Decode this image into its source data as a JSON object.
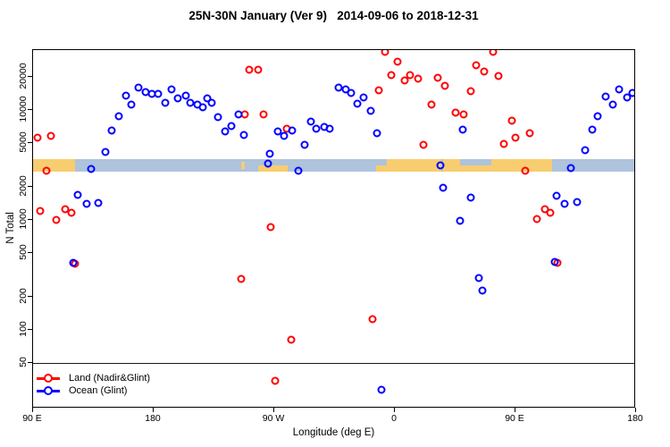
{
  "title": "25N-30N January (Ver 9)   2014-09-06 to 2018-12-31",
  "axes": {
    "x": {
      "label": "Longitude (deg E)",
      "ticks": [
        {
          "lon": 90,
          "label": "90 E"
        },
        {
          "lon": 180,
          "label": "180"
        },
        {
          "lon": 270,
          "label": "90 W"
        },
        {
          "lon": 360,
          "label": "0"
        },
        {
          "lon": 450,
          "label": "90 E"
        },
        {
          "lon": 540,
          "label": "180"
        }
      ]
    },
    "y": {
      "label": "N Total",
      "scale": "log",
      "ticks": [
        "20000",
        "10000",
        "5000",
        "2000",
        "1000",
        "500",
        "200",
        "100",
        "50"
      ]
    }
  },
  "legend": {
    "items": [
      {
        "label": "Land (Nadir&Glint)",
        "color": "#ff0000"
      },
      {
        "label": "Ocean (Glint)",
        "color": "#0000ff"
      }
    ]
  },
  "colors": {
    "land_points": "#ff0000",
    "ocean_points": "#0000ff",
    "band_ocean": "#aec3dc",
    "band_land": "#f8cd6f",
    "axis": "#000000"
  },
  "chart_data": {
    "type": "scatter",
    "title": "25N-30N January (Ver 9)   2014-09-06 to 2018-12-31",
    "xlabel": "Longitude (deg E)",
    "ylabel": "N Total",
    "x_axis": {
      "min": 90,
      "max": 540,
      "note": "continuous longitude eastward: 90E -> 180 -> 90W -> 0 -> 90E -> 180"
    },
    "y_axis": {
      "scale": "log10",
      "min": 20,
      "max": 35000
    },
    "reference_line_y": 50,
    "grid": false,
    "legend_position": "bottom-left",
    "series": [
      {
        "name": "Land (Nadir&Glint)",
        "color": "#ff0000",
        "points": [
          [
            94,
            5500
          ],
          [
            104,
            5700
          ],
          [
            100.7,
            2750
          ],
          [
            96,
            1180
          ],
          [
            114.7,
            1230
          ],
          [
            119.3,
            1140
          ],
          [
            108,
            980
          ],
          [
            122,
            392
          ],
          [
            246,
            286
          ],
          [
            248.7,
            8900
          ],
          [
            252,
            22800
          ],
          [
            258.7,
            22800
          ],
          [
            262.7,
            8900
          ],
          [
            268,
            845
          ],
          [
            271.3,
            34
          ],
          [
            280,
            6600
          ],
          [
            283.3,
            80
          ],
          [
            344,
            123
          ],
          [
            348.7,
            14800
          ],
          [
            353.3,
            33100
          ],
          [
            358,
            20400
          ],
          [
            362.7,
            27000
          ],
          [
            368,
            18200
          ],
          [
            372,
            20400
          ],
          [
            378,
            18900
          ],
          [
            382,
            4700
          ],
          [
            388,
            11000
          ],
          [
            392.7,
            19300
          ],
          [
            398,
            16300
          ],
          [
            406,
            9300
          ],
          [
            412,
            8900
          ],
          [
            417.3,
            14600
          ],
          [
            421.3,
            25000
          ],
          [
            427.3,
            22000
          ],
          [
            434,
            33100
          ],
          [
            438,
            20000
          ],
          [
            442,
            4800
          ],
          [
            448,
            7800
          ],
          [
            450.7,
            5500
          ],
          [
            458,
            2750
          ],
          [
            461.3,
            6000
          ],
          [
            466.7,
            1000
          ],
          [
            472.7,
            1230
          ],
          [
            476.7,
            1140
          ],
          [
            482,
            400
          ]
        ]
      },
      {
        "name": "Ocean (Glint)",
        "color": "#0000ff",
        "points": [
          [
            120.7,
            400
          ],
          [
            124,
            1660
          ],
          [
            130.7,
            1370
          ],
          [
            134,
            2850
          ],
          [
            139.3,
            1400
          ],
          [
            144.7,
            4100
          ],
          [
            149.3,
            6400
          ],
          [
            154.7,
            8600
          ],
          [
            160,
            13200
          ],
          [
            164,
            11000
          ],
          [
            169.3,
            15700
          ],
          [
            174.7,
            14300
          ],
          [
            179.3,
            13700
          ],
          [
            184,
            13700
          ],
          [
            189.3,
            11400
          ],
          [
            194,
            15100
          ],
          [
            198.7,
            12500
          ],
          [
            204.7,
            13200
          ],
          [
            208,
            11400
          ],
          [
            213.3,
            11000
          ],
          [
            217.3,
            10400
          ],
          [
            220.7,
            12500
          ],
          [
            224,
            11400
          ],
          [
            228.7,
            8450
          ],
          [
            234,
            6300
          ],
          [
            238.7,
            7000
          ],
          [
            244,
            8900
          ],
          [
            248,
            5800
          ],
          [
            266,
            3200
          ],
          [
            267.3,
            3900
          ],
          [
            273.3,
            6300
          ],
          [
            278,
            5700
          ],
          [
            284,
            6400
          ],
          [
            288.7,
            2750
          ],
          [
            293.3,
            4700
          ],
          [
            298,
            7700
          ],
          [
            302,
            6600
          ],
          [
            308,
            6900
          ],
          [
            312,
            6600
          ],
          [
            318.7,
            15700
          ],
          [
            324,
            15100
          ],
          [
            328,
            14000
          ],
          [
            332.7,
            11200
          ],
          [
            337.3,
            12800
          ],
          [
            342.7,
            9600
          ],
          [
            347.3,
            6000
          ],
          [
            350.7,
            28
          ],
          [
            394.7,
            3080
          ],
          [
            396.7,
            1930
          ],
          [
            409.3,
            965
          ],
          [
            411.3,
            6500
          ],
          [
            417.3,
            1570
          ],
          [
            423.3,
            290
          ],
          [
            426,
            224
          ],
          [
            480,
            407
          ],
          [
            481.3,
            1630
          ],
          [
            487.3,
            1370
          ],
          [
            492,
            2900
          ],
          [
            496.7,
            1430
          ],
          [
            502.7,
            4200
          ],
          [
            508,
            6500
          ],
          [
            512,
            8600
          ],
          [
            518,
            13000
          ],
          [
            523.3,
            11000
          ],
          [
            528,
            15100
          ],
          [
            534,
            12800
          ],
          [
            538,
            14000
          ]
        ]
      }
    ],
    "map_band": {
      "description": "thin world-map strip (25N-30N) drawn across the plot near N=3000",
      "value_center": 3100,
      "land_segments": [
        {
          "lon_start": 90,
          "lon_end": 122,
          "part": "full"
        },
        {
          "lon_start": 246,
          "lon_end": 248.5,
          "part": "mid"
        },
        {
          "lon_start": 258.7,
          "lon_end": 280.7,
          "part": "bottom"
        },
        {
          "lon_start": 346.7,
          "lon_end": 478,
          "part": "full"
        }
      ],
      "ocean_overlays": [
        {
          "lon_start": 344,
          "lon_end": 354.7,
          "part": "top"
        },
        {
          "lon_start": 395,
          "lon_end": 396.5,
          "part": "full"
        },
        {
          "lon_start": 409.3,
          "lon_end": 432.7,
          "part": "top"
        }
      ]
    }
  }
}
